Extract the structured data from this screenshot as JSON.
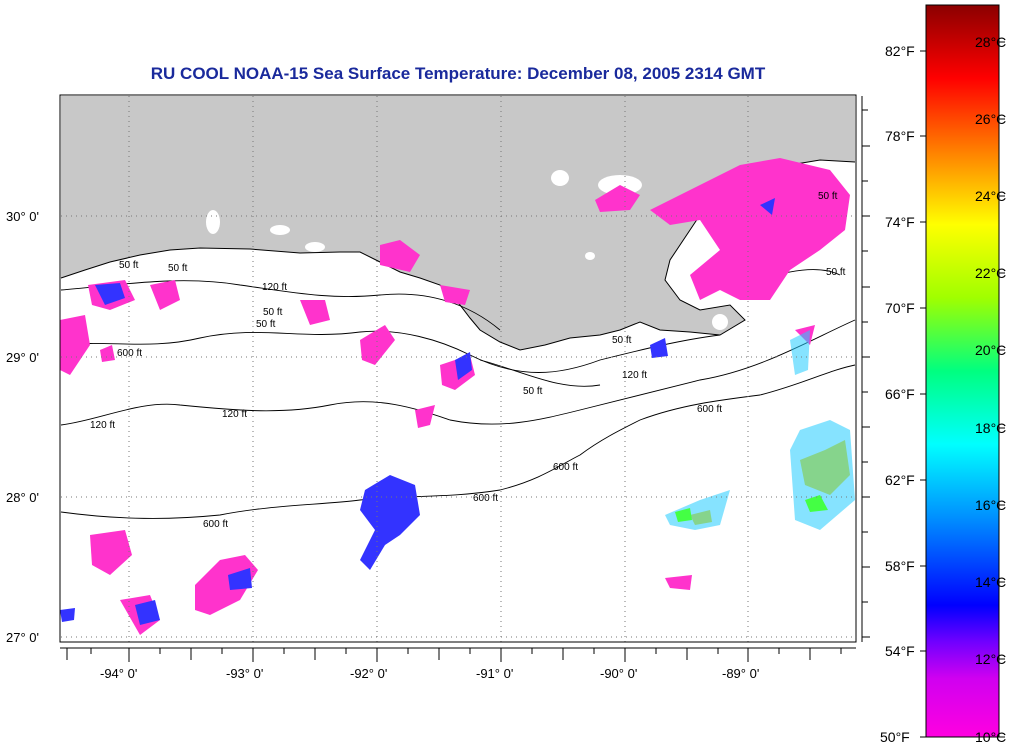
{
  "title": "RU COOL  NOAA-15  Sea Surface Temperature:  December 08, 2005 2314 GMT",
  "map": {
    "lon_labels": [
      "-94° 0'",
      "-93° 0'",
      "-92° 0'",
      "-91° 0'",
      "-90° 0'",
      "-89° 0'"
    ],
    "lat_labels": [
      "30° 0'",
      "29° 0'",
      "28° 0'",
      "27° 0'"
    ],
    "contour_labels": [
      "50 ft",
      "50 ft",
      "120 ft",
      "50 ft",
      "50 ft",
      "600 ft",
      "120 ft",
      "120 ft",
      "600 ft",
      "600 ft",
      "600 ft",
      "50 ft",
      "120 ft",
      "600 ft",
      "50 ft",
      "50 ft",
      "50 ft"
    ],
    "land_color": "#c8c8c8",
    "ocean_color": "#ffffff"
  },
  "colorbar": {
    "fahrenheit_labels": [
      "82°F",
      "78°F",
      "74°F",
      "70°F",
      "66°F",
      "62°F",
      "58°F",
      "54°F",
      "50°F"
    ],
    "celsius_labels": [
      "28°C",
      "26°C",
      "24°C",
      "22°C",
      "20°C",
      "18°C",
      "16°C",
      "14°C",
      "12°C",
      "10°C"
    ],
    "colors": [
      "#ff00e0",
      "#b000ff",
      "#0000ff",
      "#0090ff",
      "#00ffff",
      "#00ff80",
      "#a0ff00",
      "#ffff00",
      "#ff8000",
      "#ff0000",
      "#8b0000"
    ]
  }
}
